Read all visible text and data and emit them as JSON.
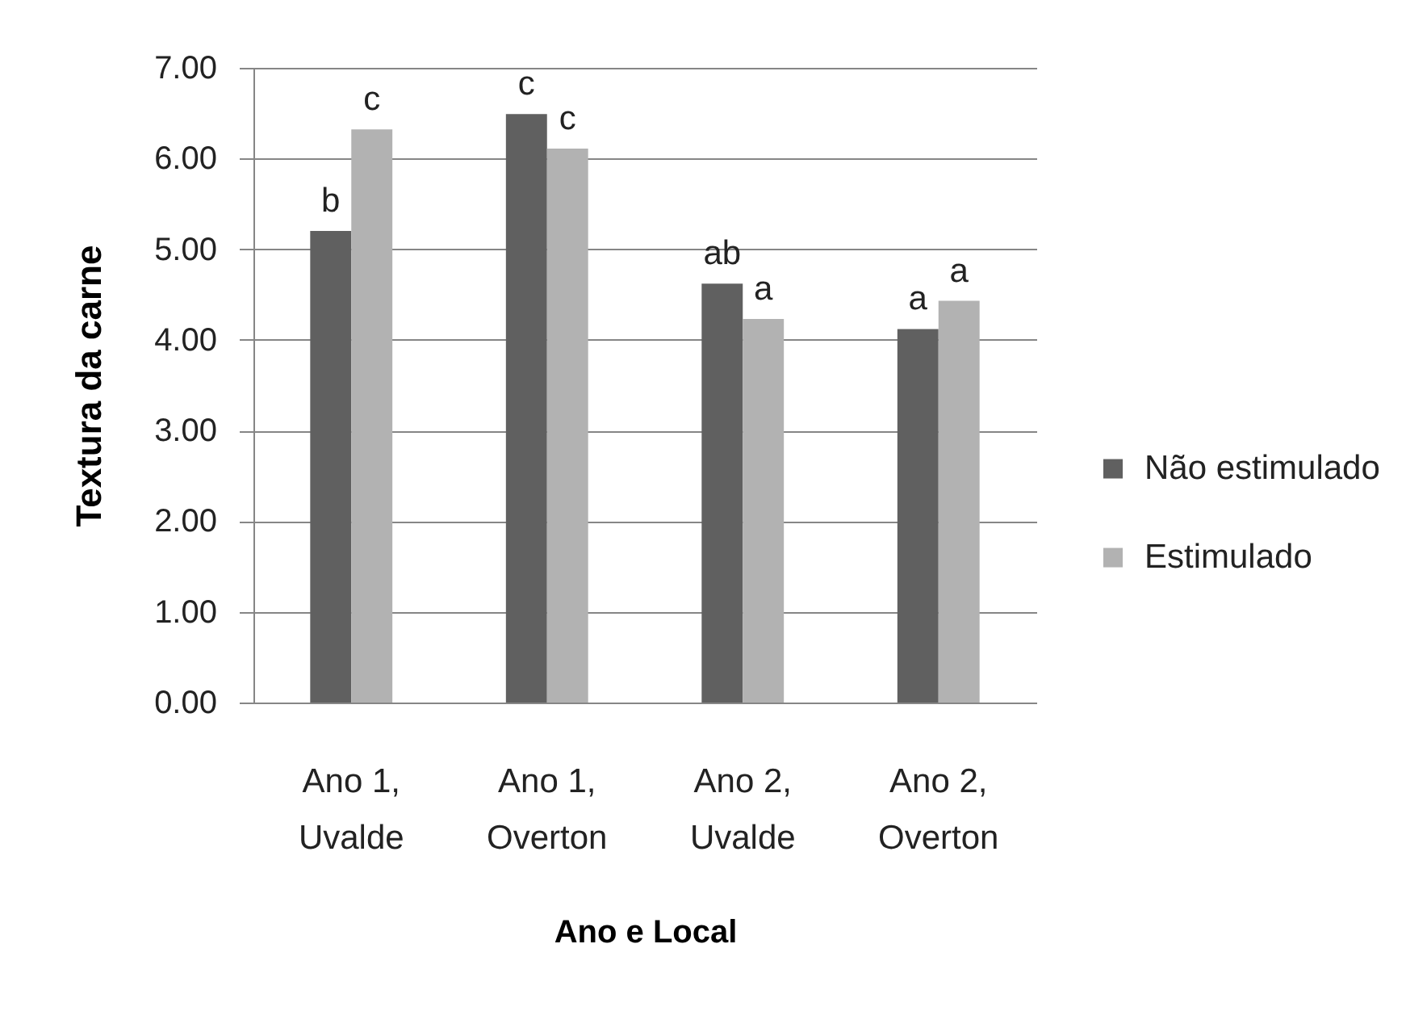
{
  "chart_data": {
    "type": "bar",
    "xlabel": "Ano e Local",
    "ylabel": "Textura da carne",
    "categories": [
      "Ano 1, Uvalde",
      "Ano 1, Overton",
      "Ano 2, Uvalde",
      "Ano 2, Overton"
    ],
    "series": [
      {
        "name": "Não estimulado",
        "color": "#606060",
        "values": [
          5.2,
          6.49,
          4.62,
          4.12
        ],
        "value_labels": [
          "b",
          "c",
          "ab",
          "a"
        ]
      },
      {
        "name": "Estimulado",
        "color": "#b2b2b2",
        "values": [
          6.32,
          6.11,
          4.23,
          4.43
        ],
        "value_labels": [
          "c",
          "c",
          "a",
          "a"
        ]
      }
    ],
    "ylim": [
      0,
      7
    ],
    "yticks": [
      {
        "value": 0,
        "label": "0.00"
      },
      {
        "value": 1,
        "label": "1.00"
      },
      {
        "value": 2,
        "label": "2.00"
      },
      {
        "value": 3,
        "label": "3.00"
      },
      {
        "value": 4,
        "label": "4.00"
      },
      {
        "value": 5,
        "label": "5.00"
      },
      {
        "value": 6,
        "label": "6.00"
      },
      {
        "value": 7,
        "label": "7.00"
      }
    ],
    "grid": "y",
    "legend": "right"
  }
}
